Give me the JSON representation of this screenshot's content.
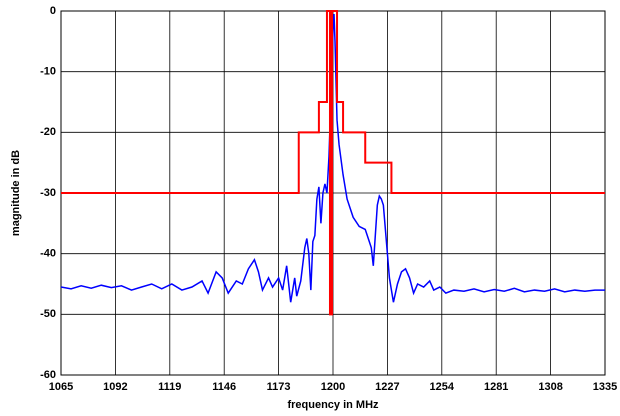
{
  "chart_data": {
    "type": "line",
    "xlabel": "frequency in MHz",
    "ylabel": "magnitude in dB",
    "xlim": [
      1065,
      1335
    ],
    "xticks": [
      1065,
      1092,
      1119,
      1146,
      1173,
      1200,
      1227,
      1254,
      1281,
      1308,
      1335
    ],
    "ylim": [
      -60,
      0
    ],
    "yticks": [
      -60,
      -50,
      -40,
      -30,
      -20,
      -10,
      0
    ],
    "grid": true,
    "series": [
      {
        "color": "#0000ff",
        "x": [
          1065,
          1070,
          1075,
          1080,
          1085,
          1090,
          1095,
          1100,
          1105,
          1110,
          1115,
          1120,
          1125,
          1130,
          1135,
          1138,
          1142,
          1145,
          1148,
          1152,
          1155,
          1158,
          1161,
          1163,
          1165,
          1168,
          1170,
          1173,
          1175,
          1177,
          1179,
          1181,
          1182,
          1184,
          1186,
          1187,
          1188,
          1189,
          1190,
          1191,
          1192,
          1193,
          1194,
          1195,
          1196,
          1197,
          1198,
          1199,
          1200,
          1200.5,
          1201,
          1202,
          1203,
          1205,
          1207,
          1210,
          1213,
          1216,
          1218,
          1219,
          1220,
          1221,
          1222,
          1223,
          1224,
          1225,
          1226,
          1227,
          1228,
          1229,
          1230,
          1232,
          1234,
          1236,
          1238,
          1240,
          1242,
          1245,
          1248,
          1250,
          1253,
          1256,
          1260,
          1265,
          1270,
          1275,
          1280,
          1285,
          1290,
          1295,
          1300,
          1305,
          1310,
          1315,
          1320,
          1325,
          1330,
          1335
        ],
        "values": [
          -45.5,
          -45.8,
          -45.3,
          -45.7,
          -45.2,
          -45.6,
          -45.3,
          -46,
          -45.5,
          -45,
          -45.8,
          -45,
          -46,
          -45.5,
          -44.5,
          -46.5,
          -43,
          -44,
          -46.5,
          -44.5,
          -45,
          -42.5,
          -41,
          -43,
          -46,
          -44,
          -45.5,
          -44,
          -46,
          -42,
          -48,
          -44,
          -47,
          -44.5,
          -39,
          -37.5,
          -40,
          -46,
          -38,
          -37,
          -31,
          -29,
          -35,
          -30,
          -28.5,
          -30,
          -24,
          -14,
          -3,
          -0.5,
          -5,
          -18,
          -22,
          -27,
          -31,
          -34,
          -35.5,
          -36,
          -38,
          -39,
          -42,
          -37,
          -32,
          -30.5,
          -31,
          -32,
          -36,
          -40,
          -44,
          -46,
          -48,
          -45,
          -43,
          -42.5,
          -44,
          -46.5,
          -45,
          -45.5,
          -44.5,
          -46,
          -45.5,
          -46.5,
          -46,
          -46.2,
          -45.8,
          -46.3,
          -45.9,
          -46.2,
          -45.7,
          -46.3,
          -46,
          -46.2,
          -45.8,
          -46.3,
          -46,
          -46.2,
          -46,
          -46
        ]
      },
      {
        "color": "#ff0000",
        "x": [
          1065,
          1183,
          1183,
          1193,
          1193,
          1197,
          1197,
          1198.5,
          1198.5,
          1199.5,
          1199.5,
          1202,
          1202,
          1205,
          1205,
          1216,
          1216,
          1229,
          1229,
          1335
        ],
        "values": [
          -30,
          -30,
          -20,
          -20,
          -15,
          -15,
          0,
          0,
          -50,
          -50,
          0,
          0,
          -15,
          -15,
          -20,
          -20,
          -25,
          -25,
          -30,
          -30
        ]
      }
    ]
  }
}
